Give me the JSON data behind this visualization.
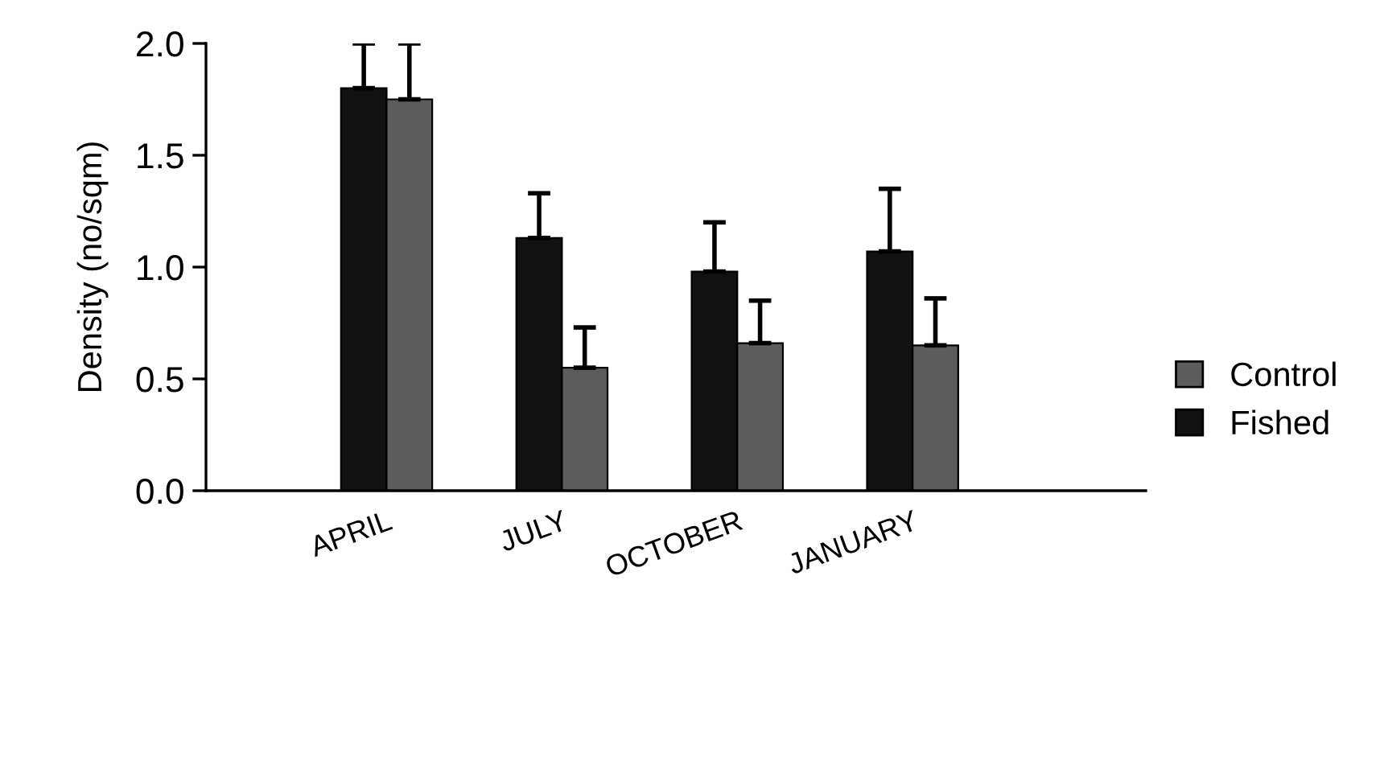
{
  "chart_data": {
    "type": "bar",
    "ylabel": "Density (no/sqm)",
    "categories": [
      "APRIL",
      "JULY",
      "OCTOBER",
      "JANUARY"
    ],
    "series": [
      {
        "name": "Fished",
        "color": "#111111",
        "values": [
          1.8,
          1.13,
          0.98,
          1.07
        ],
        "errors": [
          [
            1.8,
            2.0
          ],
          [
            1.13,
            1.33
          ],
          [
            0.98,
            1.2
          ],
          [
            1.07,
            1.35
          ]
        ]
      },
      {
        "name": "Control",
        "color": "#5c5c5c",
        "values": [
          1.75,
          0.55,
          0.66,
          0.65
        ],
        "errors": [
          [
            1.75,
            2.0
          ],
          [
            0.55,
            0.73
          ],
          [
            0.66,
            0.85
          ],
          [
            0.65,
            0.86
          ]
        ]
      }
    ],
    "ylim": [
      0,
      2.0
    ],
    "yticks": [
      {
        "value": 0,
        "label": "0.0"
      },
      0.5,
      {
        "value": 1,
        "label": "1.0"
      },
      1.5,
      {
        "value": 2,
        "label": "2.0"
      }
    ],
    "grid": false,
    "legend": "right"
  }
}
